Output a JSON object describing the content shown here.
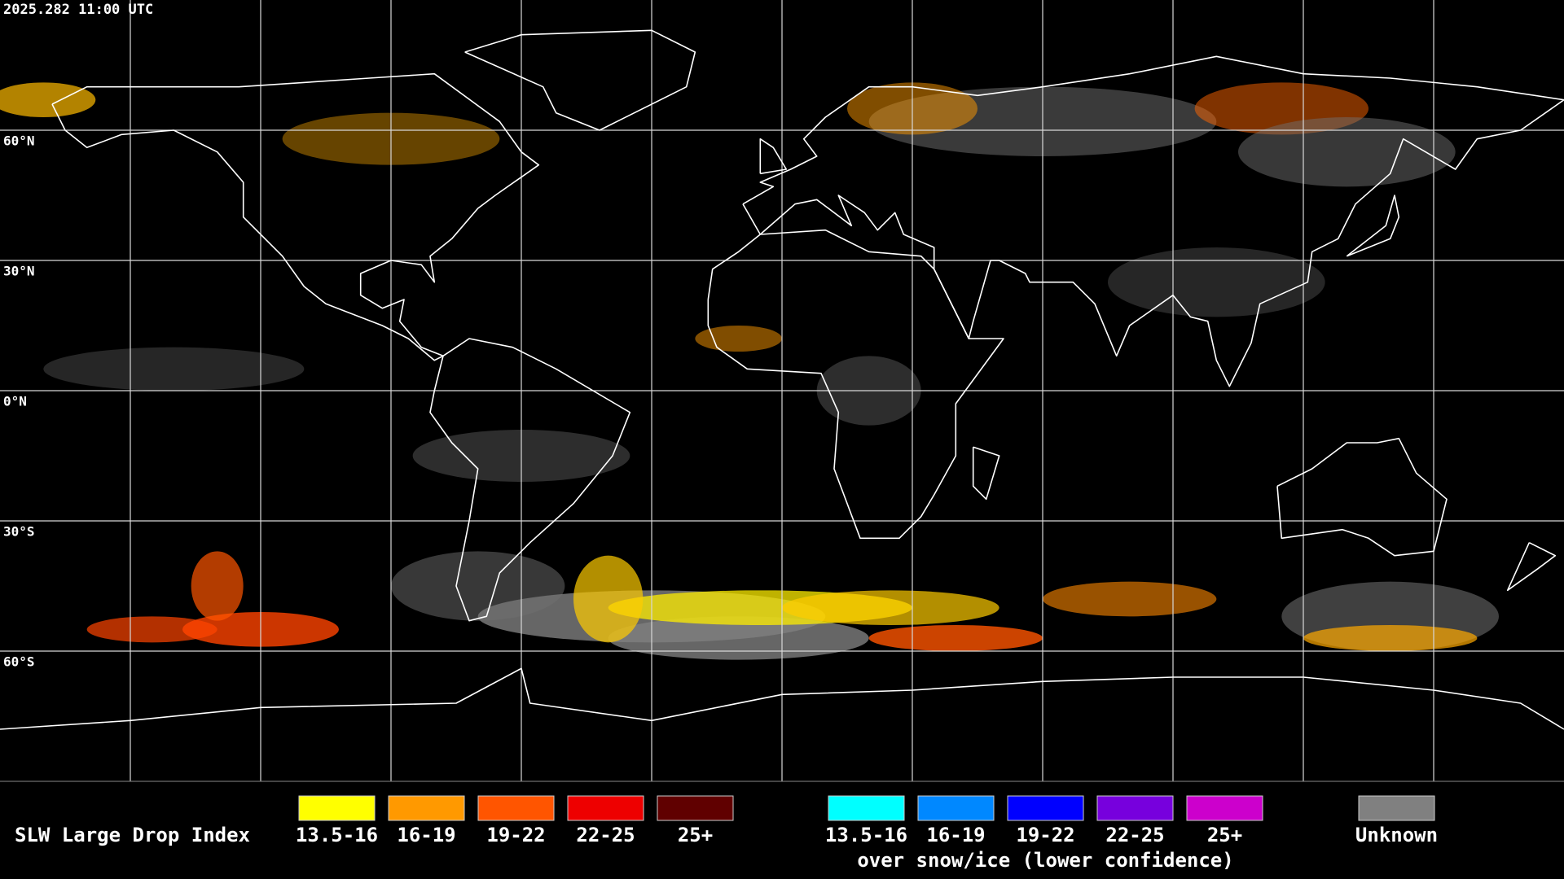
{
  "header": {
    "timestamp": "2025.282 11:00 UTC"
  },
  "map": {
    "latitude_labels": [
      "60°N",
      "30°N",
      "0°N",
      "30°S",
      "60°S"
    ]
  },
  "legend": {
    "title": "SLW Large Drop Index",
    "groups": [
      {
        "items": [
          {
            "label": "13.5-16",
            "color": "#ffff00"
          },
          {
            "label": "16-19",
            "color": "#ff9900"
          },
          {
            "label": "19-22",
            "color": "#ff5500"
          },
          {
            "label": "22-25",
            "color": "#ee0000"
          },
          {
            "label": "25+",
            "color": "#600000"
          }
        ]
      },
      {
        "items": [
          {
            "label": "13.5-16",
            "color": "#00ffff"
          },
          {
            "label": "16-19",
            "color": "#0088ff"
          },
          {
            "label": "19-22",
            "color": "#0000ff"
          },
          {
            "label": "22-25",
            "color": "#7700dd"
          },
          {
            "label": "25+",
            "color": "#cc00cc"
          }
        ],
        "caption": "over snow/ice (lower confidence)"
      },
      {
        "items": [
          {
            "label": "Unknown",
            "color": "#808080"
          }
        ]
      }
    ]
  }
}
